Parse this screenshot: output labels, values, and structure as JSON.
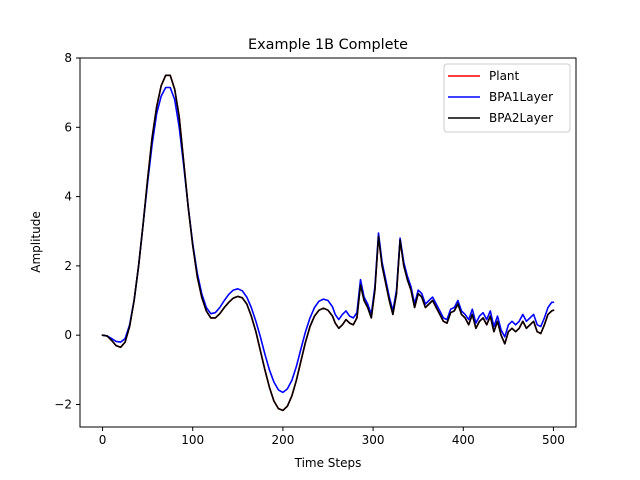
{
  "chart_data": {
    "type": "line",
    "title": "Example 1B Complete",
    "xlabel": "Time Steps",
    "ylabel": "Amplitude",
    "xlim": [
      -25,
      525
    ],
    "ylim": [
      -2.65,
      8.0
    ],
    "xticks": [
      0,
      100,
      200,
      300,
      400,
      500
    ],
    "xtick_labels": [
      "0",
      "100",
      "200",
      "300",
      "400",
      "500"
    ],
    "yticks": [
      -2,
      0,
      2,
      4,
      6,
      8
    ],
    "ytick_labels": [
      "−2",
      "0",
      "2",
      "4",
      "6",
      "8"
    ],
    "grid": false,
    "legend_position": "top-right",
    "series": [
      {
        "name": "Plant",
        "color": "#ff0000",
        "x": [
          0,
          5,
          10,
          15,
          20,
          25,
          30,
          35,
          40,
          45,
          50,
          55,
          60,
          65,
          70,
          75,
          80,
          85,
          90,
          95,
          100,
          105,
          110,
          115,
          120,
          125,
          130,
          135,
          140,
          145,
          150,
          155,
          160,
          165,
          170,
          175,
          180,
          185,
          190,
          195,
          200,
          205,
          210,
          215,
          220,
          225,
          230,
          235,
          240,
          245,
          250,
          255,
          258,
          262,
          266,
          270,
          274,
          278,
          282,
          286,
          290,
          294,
          298,
          302,
          306,
          310,
          314,
          318,
          322,
          326,
          330,
          334,
          338,
          342,
          346,
          350,
          354,
          358,
          362,
          366,
          370,
          374,
          378,
          382,
          386,
          390,
          394,
          398,
          402,
          406,
          410,
          414,
          418,
          422,
          426,
          430,
          434,
          438,
          442,
          446,
          450,
          454,
          458,
          462,
          466,
          470,
          474,
          478,
          482,
          486,
          490,
          494,
          498,
          500
        ],
        "y": [
          0.0,
          -0.02,
          -0.15,
          -0.3,
          -0.35,
          -0.2,
          0.25,
          1.0,
          2.0,
          3.2,
          4.5,
          5.7,
          6.6,
          7.2,
          7.5,
          7.5,
          7.1,
          6.3,
          5.0,
          3.7,
          2.6,
          1.7,
          1.1,
          0.7,
          0.5,
          0.5,
          0.62,
          0.8,
          0.95,
          1.07,
          1.12,
          1.08,
          0.9,
          0.55,
          0.1,
          -0.45,
          -1.0,
          -1.5,
          -1.9,
          -2.12,
          -2.17,
          -2.05,
          -1.75,
          -1.3,
          -0.75,
          -0.2,
          0.25,
          0.55,
          0.72,
          0.78,
          0.72,
          0.55,
          0.35,
          0.2,
          0.3,
          0.45,
          0.35,
          0.3,
          0.5,
          1.45,
          1.0,
          0.8,
          0.5,
          1.3,
          2.85,
          2.0,
          1.5,
          1.0,
          0.6,
          1.2,
          2.75,
          2.0,
          1.6,
          1.3,
          0.8,
          1.2,
          1.1,
          0.8,
          0.9,
          1.0,
          0.8,
          0.6,
          0.4,
          0.35,
          0.65,
          0.7,
          0.9,
          0.6,
          0.5,
          0.3,
          0.6,
          0.2,
          0.4,
          0.5,
          0.3,
          0.55,
          0.1,
          0.4,
          0.0,
          -0.25,
          0.1,
          0.2,
          0.1,
          0.2,
          0.4,
          0.2,
          0.3,
          0.4,
          0.1,
          0.05,
          0.3,
          0.6,
          0.7,
          0.72
        ]
      },
      {
        "name": "BPA1Layer",
        "color": "#0000ff",
        "x": [
          0,
          5,
          10,
          15,
          20,
          25,
          30,
          35,
          40,
          45,
          50,
          55,
          60,
          65,
          70,
          75,
          80,
          85,
          90,
          95,
          100,
          105,
          110,
          115,
          120,
          125,
          130,
          135,
          140,
          145,
          150,
          155,
          160,
          165,
          170,
          175,
          180,
          185,
          190,
          195,
          200,
          205,
          210,
          215,
          220,
          225,
          230,
          235,
          240,
          245,
          250,
          255,
          258,
          262,
          266,
          270,
          274,
          278,
          282,
          286,
          290,
          294,
          298,
          302,
          306,
          310,
          314,
          318,
          322,
          326,
          330,
          334,
          338,
          342,
          346,
          350,
          354,
          358,
          362,
          366,
          370,
          374,
          378,
          382,
          386,
          390,
          394,
          398,
          402,
          406,
          410,
          414,
          418,
          422,
          426,
          430,
          434,
          438,
          442,
          446,
          450,
          454,
          458,
          462,
          466,
          470,
          474,
          478,
          482,
          486,
          490,
          494,
          498,
          500
        ],
        "y": [
          0.0,
          -0.02,
          -0.1,
          -0.18,
          -0.2,
          -0.1,
          0.3,
          1.0,
          2.0,
          3.2,
          4.4,
          5.5,
          6.4,
          6.9,
          7.15,
          7.15,
          6.8,
          6.0,
          4.9,
          3.7,
          2.65,
          1.8,
          1.2,
          0.8,
          0.62,
          0.65,
          0.8,
          1.0,
          1.18,
          1.3,
          1.34,
          1.28,
          1.1,
          0.8,
          0.4,
          -0.05,
          -0.55,
          -1.0,
          -1.35,
          -1.58,
          -1.65,
          -1.55,
          -1.3,
          -0.9,
          -0.4,
          0.1,
          0.5,
          0.8,
          0.98,
          1.04,
          1.0,
          0.82,
          0.6,
          0.45,
          0.6,
          0.7,
          0.55,
          0.5,
          0.65,
          1.6,
          1.1,
          0.9,
          0.6,
          1.4,
          2.95,
          2.1,
          1.6,
          1.1,
          0.7,
          1.3,
          2.8,
          2.1,
          1.7,
          1.4,
          0.9,
          1.3,
          1.2,
          0.9,
          1.0,
          1.1,
          0.9,
          0.7,
          0.5,
          0.45,
          0.75,
          0.8,
          1.0,
          0.7,
          0.6,
          0.45,
          0.75,
          0.35,
          0.55,
          0.65,
          0.45,
          0.7,
          0.25,
          0.55,
          0.15,
          -0.05,
          0.3,
          0.4,
          0.3,
          0.4,
          0.6,
          0.4,
          0.5,
          0.6,
          0.3,
          0.25,
          0.5,
          0.8,
          0.95,
          0.95
        ]
      },
      {
        "name": "BPA2Layer",
        "color": "#000000",
        "x": [
          0,
          5,
          10,
          15,
          20,
          25,
          30,
          35,
          40,
          45,
          50,
          55,
          60,
          65,
          70,
          75,
          80,
          85,
          90,
          95,
          100,
          105,
          110,
          115,
          120,
          125,
          130,
          135,
          140,
          145,
          150,
          155,
          160,
          165,
          170,
          175,
          180,
          185,
          190,
          195,
          200,
          205,
          210,
          215,
          220,
          225,
          230,
          235,
          240,
          245,
          250,
          255,
          258,
          262,
          266,
          270,
          274,
          278,
          282,
          286,
          290,
          294,
          298,
          302,
          306,
          310,
          314,
          318,
          322,
          326,
          330,
          334,
          338,
          342,
          346,
          350,
          354,
          358,
          362,
          366,
          370,
          374,
          378,
          382,
          386,
          390,
          394,
          398,
          402,
          406,
          410,
          414,
          418,
          422,
          426,
          430,
          434,
          438,
          442,
          446,
          450,
          454,
          458,
          462,
          466,
          470,
          474,
          478,
          482,
          486,
          490,
          494,
          498,
          500
        ],
        "y": [
          0.0,
          -0.02,
          -0.15,
          -0.3,
          -0.35,
          -0.2,
          0.25,
          1.0,
          2.0,
          3.2,
          4.5,
          5.7,
          6.6,
          7.2,
          7.5,
          7.5,
          7.1,
          6.3,
          5.0,
          3.7,
          2.6,
          1.7,
          1.1,
          0.7,
          0.5,
          0.5,
          0.62,
          0.8,
          0.95,
          1.07,
          1.12,
          1.08,
          0.9,
          0.55,
          0.1,
          -0.45,
          -1.0,
          -1.5,
          -1.9,
          -2.12,
          -2.17,
          -2.05,
          -1.75,
          -1.3,
          -0.75,
          -0.2,
          0.25,
          0.55,
          0.72,
          0.78,
          0.72,
          0.55,
          0.35,
          0.2,
          0.3,
          0.45,
          0.35,
          0.3,
          0.5,
          1.45,
          1.0,
          0.8,
          0.5,
          1.3,
          2.85,
          2.0,
          1.5,
          1.0,
          0.6,
          1.2,
          2.75,
          2.0,
          1.6,
          1.3,
          0.8,
          1.2,
          1.1,
          0.8,
          0.9,
          1.0,
          0.8,
          0.6,
          0.4,
          0.35,
          0.65,
          0.7,
          0.9,
          0.6,
          0.5,
          0.3,
          0.6,
          0.2,
          0.4,
          0.5,
          0.3,
          0.55,
          0.1,
          0.4,
          0.0,
          -0.25,
          0.1,
          0.2,
          0.1,
          0.2,
          0.4,
          0.2,
          0.3,
          0.4,
          0.1,
          0.05,
          0.3,
          0.6,
          0.7,
          0.72
        ]
      }
    ]
  }
}
